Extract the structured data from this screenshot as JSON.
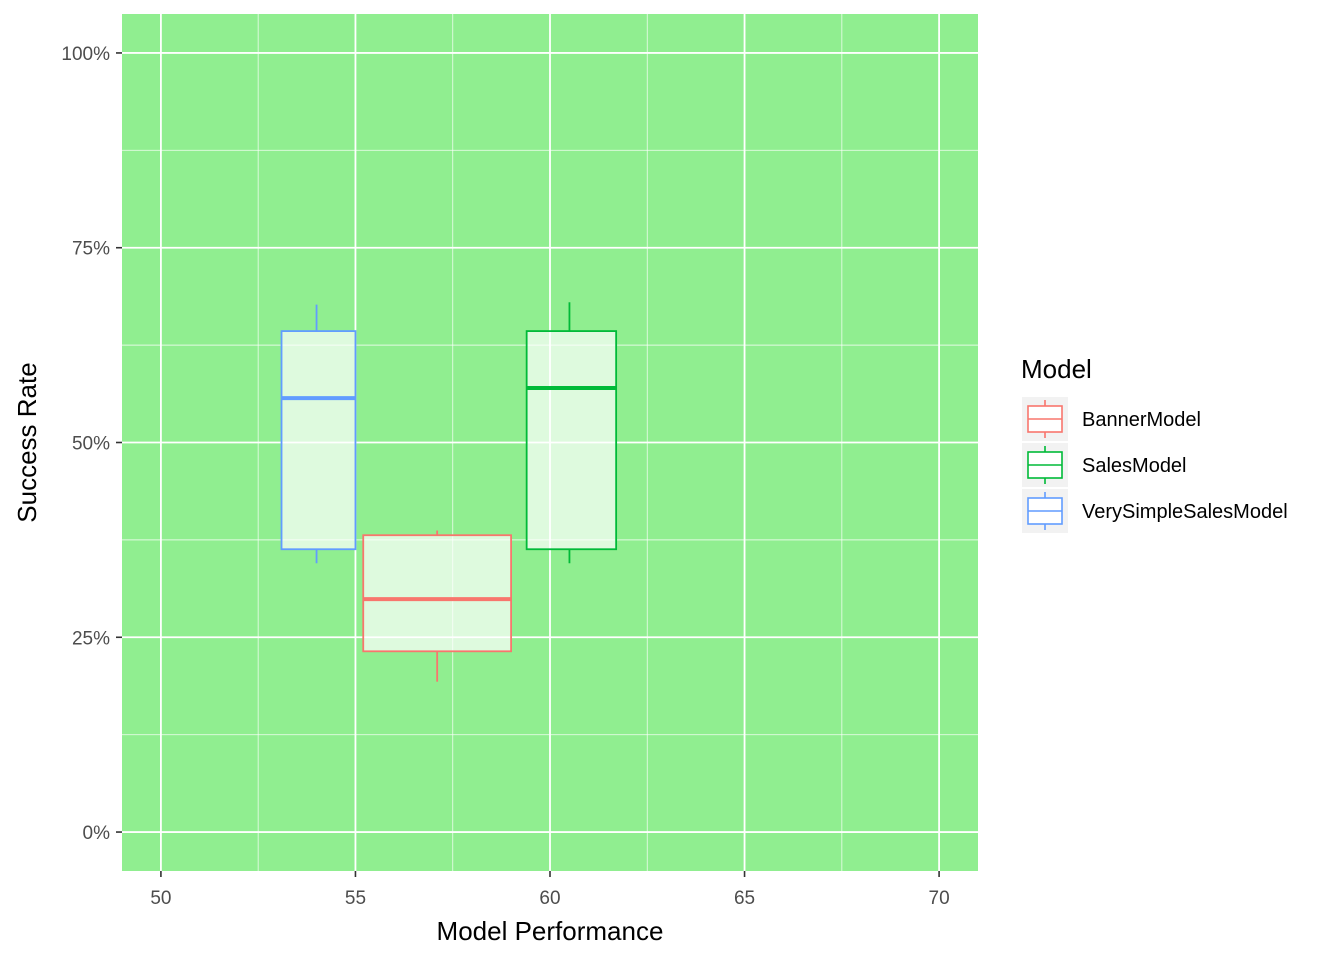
{
  "chart_data": {
    "type": "box",
    "xlabel": "Model Performance",
    "ylabel": "Success Rate",
    "xlim": [
      49,
      71
    ],
    "ylim": [
      -0.05,
      1.05
    ],
    "x_ticks": [
      50,
      55,
      60,
      65,
      70
    ],
    "x_tick_labels": [
      "50",
      "55",
      "60",
      "65",
      "70"
    ],
    "y_ticks": [
      0,
      0.25,
      0.5,
      0.75,
      1.0
    ],
    "y_tick_labels": [
      "0%",
      "25%",
      "50%",
      "75%",
      "100%"
    ],
    "grid": true,
    "panel_background": "#90ee90",
    "box_fill": "#ffffff",
    "box_fill_opacity": 0.7,
    "legend": {
      "title": "Model",
      "placement": "right",
      "entries": [
        {
          "name": "BannerModel",
          "color": "#f8766d"
        },
        {
          "name": "SalesModel",
          "color": "#00ba38"
        },
        {
          "name": "VerySimpleSalesModel",
          "color": "#619cff"
        }
      ]
    },
    "series": [
      {
        "name": "VerySimpleSalesModel",
        "color": "#619cff",
        "x_from": 53.1,
        "x_to": 55.0,
        "x_center": 54.0,
        "min": 0.345,
        "q1": 0.363,
        "median": 0.557,
        "q3": 0.643,
        "max": 0.677
      },
      {
        "name": "BannerModel",
        "color": "#f8766d",
        "x_from": 55.2,
        "x_to": 59.0,
        "x_center": 57.1,
        "min": 0.193,
        "q1": 0.232,
        "median": 0.299,
        "q3": 0.381,
        "max": 0.387
      },
      {
        "name": "SalesModel",
        "color": "#00ba38",
        "x_from": 59.4,
        "x_to": 61.7,
        "x_center": 60.5,
        "min": 0.345,
        "q1": 0.363,
        "median": 0.57,
        "q3": 0.643,
        "max": 0.68
      }
    ]
  }
}
